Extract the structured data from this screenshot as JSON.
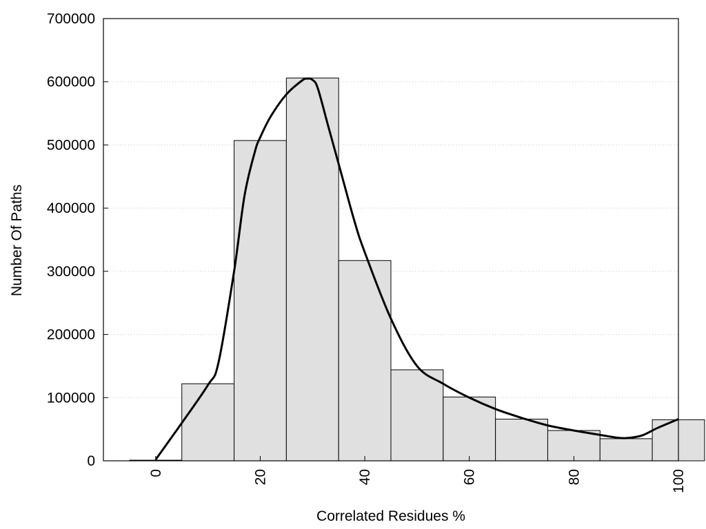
{
  "chart_data": {
    "type": "bar",
    "title": "",
    "xlabel": "Correlated Residues %",
    "ylabel": "Number Of Paths",
    "xlim": [
      -10,
      100
    ],
    "ylim": [
      0,
      700000
    ],
    "xticks": [
      "0",
      "20",
      "40",
      "60",
      "80",
      "100"
    ],
    "yticks": [
      "0",
      "100000",
      "200000",
      "300000",
      "400000",
      "500000",
      "600000",
      "700000"
    ],
    "grid": "horizontal dotted",
    "bin_width": 10,
    "bins": {
      "centers": [
        0,
        10,
        20,
        30,
        40,
        50,
        60,
        70,
        80,
        90,
        100
      ],
      "values": [
        1000,
        122000,
        507000,
        606000,
        317000,
        144000,
        101000,
        66000,
        48000,
        35000,
        65000
      ]
    },
    "density_curve": {
      "x": [
        0,
        5,
        10,
        12,
        15,
        17,
        19,
        20,
        22,
        25,
        28,
        29,
        30,
        31,
        33,
        35,
        38,
        40,
        45,
        50,
        55,
        60,
        65,
        70,
        75,
        80,
        85,
        88,
        90,
        93,
        96,
        100
      ],
      "y": [
        2000,
        60000,
        120000,
        155000,
        300000,
        420000,
        490000,
        512000,
        545000,
        580000,
        602000,
        605000,
        603000,
        590000,
        530000,
        470000,
        380000,
        330000,
        225000,
        150000,
        122000,
        100000,
        82000,
        68000,
        56000,
        48000,
        41000,
        37000,
        36000,
        40000,
        52000,
        66000
      ]
    },
    "colors": {
      "bar_fill": "#e0e0e0",
      "bar_stroke": "#000000",
      "curve": "#000000",
      "grid": "#c8c8c8"
    }
  }
}
